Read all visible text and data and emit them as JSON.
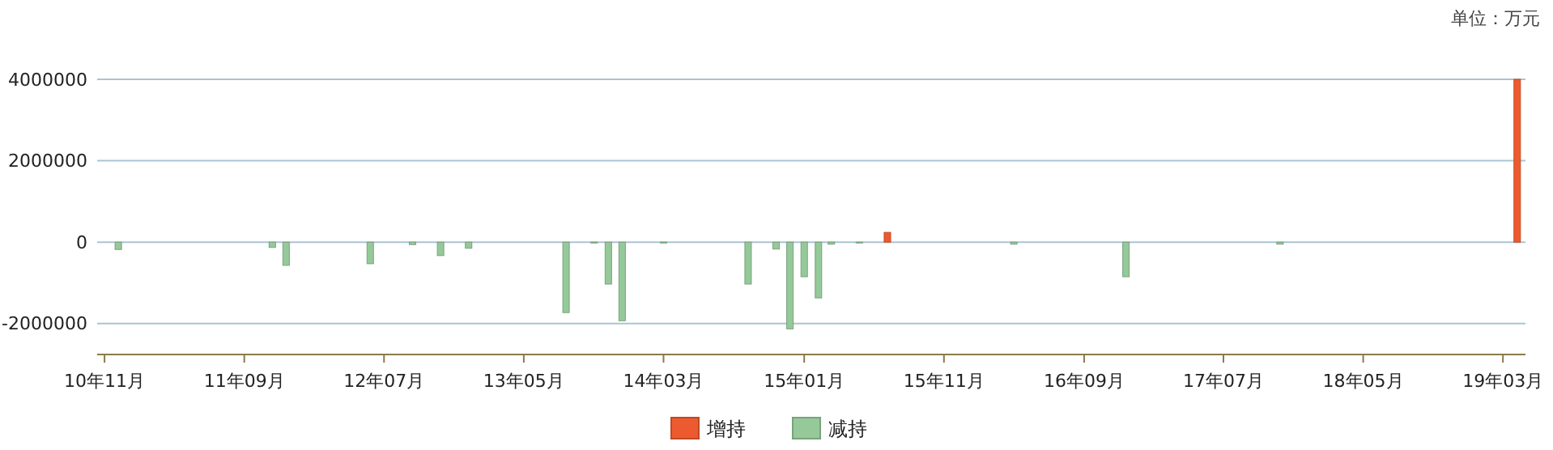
{
  "chart_data": {
    "type": "bar",
    "annotations": [
      "单位：万元"
    ],
    "xlim": [
      "2010-10-16",
      "2019-04-19"
    ],
    "xticks": [
      {
        "value": "2010-11",
        "label": "10年11月"
      },
      {
        "value": "2011-09",
        "label": "11年09月"
      },
      {
        "value": "2012-07",
        "label": "12年07月"
      },
      {
        "value": "2013-05",
        "label": "13年05月"
      },
      {
        "value": "2014-03",
        "label": "14年03月"
      },
      {
        "value": "2015-01",
        "label": "15年01月"
      },
      {
        "value": "2015-11",
        "label": "15年11月"
      },
      {
        "value": "2016-09",
        "label": "16年09月"
      },
      {
        "value": "2017-07",
        "label": "17年07月"
      },
      {
        "value": "2018-05",
        "label": "18年05月"
      },
      {
        "value": "2019-03",
        "label": "19年03月"
      }
    ],
    "ylim": [
      -2760000,
      4000000
    ],
    "yticks": [
      -2000000,
      0,
      2000000,
      4000000
    ],
    "grid": "y",
    "legend": "bottom",
    "series": [
      {
        "name": "增持",
        "color": "#ee5a2f",
        "x": [
          "2015-07",
          "2019-04"
        ],
        "values": [
          240000,
          4000000
        ]
      },
      {
        "name": "减持",
        "color": "#95c99a",
        "x": [
          "2010-12",
          "2011-11",
          "2011-12",
          "2012-06",
          "2012-09",
          "2012-11",
          "2013-01",
          "2013-08",
          "2013-10",
          "2013-11",
          "2013-12",
          "2014-03",
          "2014-09",
          "2014-11",
          "2014-12",
          "2015-01",
          "2015-02",
          "2015-03",
          "2015-05",
          "2016-04",
          "2016-12",
          "2017-11"
        ],
        "values": [
          -180000,
          -130000,
          -570000,
          -530000,
          -60000,
          -330000,
          -150000,
          -1730000,
          -20000,
          -1030000,
          -1930000,
          -20000,
          -1030000,
          -170000,
          -2130000,
          -850000,
          -1370000,
          -50000,
          -20000,
          -50000,
          -850000,
          -50000
        ]
      }
    ]
  }
}
